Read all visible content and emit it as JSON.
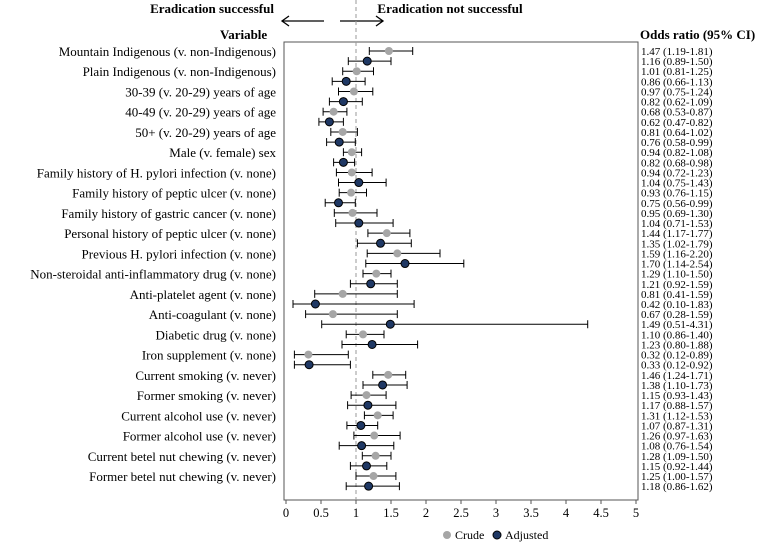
{
  "header": {
    "left_label": "Eradication successful",
    "right_label": "Eradication not successful",
    "variable_header": "Variable",
    "or_header": "Odds ratio (95% CI)"
  },
  "legend": {
    "crude": "Crude",
    "adjusted": "Adjusted"
  },
  "colors": {
    "crude": "#a6a6a6",
    "adjusted": "#1f3864",
    "reference_line": "#999999"
  },
  "chart_data": {
    "type": "forest",
    "xlim": [
      0,
      5
    ],
    "xticks": [
      "0",
      "0.5",
      "1",
      "1.5",
      "2",
      "2.5",
      "3",
      "3.5",
      "4",
      "4.5",
      "5"
    ],
    "reference": 1,
    "variables": [
      {
        "label": "Mountain Indigenous (v. non-Indigenous)",
        "crude": [
          1.47,
          1.19,
          1.81
        ],
        "crude_text": "1.47 (1.19-1.81)",
        "adjusted": [
          1.16,
          0.89,
          1.5
        ],
        "adjusted_text": "1.16 (0.89-1.50)"
      },
      {
        "label": "Plain Indigenous (v. non-Indigenous)",
        "crude": [
          1.01,
          0.81,
          1.25
        ],
        "crude_text": "1.01 (0.81-1.25)",
        "adjusted": [
          0.86,
          0.66,
          1.13
        ],
        "adjusted_text": "0.86 (0.66-1.13)"
      },
      {
        "label": "30-39 (v. 20-29) years of age",
        "crude": [
          0.97,
          0.75,
          1.24
        ],
        "crude_text": "0.97 (0.75-1.24)",
        "adjusted": [
          0.82,
          0.62,
          1.09
        ],
        "adjusted_text": "0.82 (0.62-1.09)"
      },
      {
        "label": "40-49 (v. 20-29) years of age",
        "crude": [
          0.68,
          0.53,
          0.87
        ],
        "crude_text": "0.68 (0.53-0.87)",
        "adjusted": [
          0.62,
          0.47,
          0.82
        ],
        "adjusted_text": "0.62 (0.47-0.82)"
      },
      {
        "label": "50+ (v. 20-29) years of age",
        "crude": [
          0.81,
          0.64,
          1.02
        ],
        "crude_text": "0.81 (0.64-1.02)",
        "adjusted": [
          0.76,
          0.58,
          0.99
        ],
        "adjusted_text": "0.76 (0.58-0.99)"
      },
      {
        "label": "Male (v. female) sex",
        "crude": [
          0.94,
          0.82,
          1.08
        ],
        "crude_text": "0.94 (0.82-1.08)",
        "adjusted": [
          0.82,
          0.68,
          0.98
        ],
        "adjusted_text": "0.82 (0.68-0.98)"
      },
      {
        "label": "Family history of H. pylori infection (v. none)",
        "crude": [
          0.94,
          0.72,
          1.23
        ],
        "crude_text": "0.94 (0.72-1.23)",
        "adjusted": [
          1.04,
          0.75,
          1.43
        ],
        "adjusted_text": "1.04 (0.75-1.43)"
      },
      {
        "label": "Family history of peptic ulcer (v. none)",
        "crude": [
          0.93,
          0.76,
          1.15
        ],
        "crude_text": "0.93 (0.76-1.15)",
        "adjusted": [
          0.75,
          0.56,
          0.99
        ],
        "adjusted_text": "0.75 (0.56-0.99)"
      },
      {
        "label": "Family history of gastric cancer (v. none)",
        "crude": [
          0.95,
          0.69,
          1.3
        ],
        "crude_text": "0.95 (0.69-1.30)",
        "adjusted": [
          1.04,
          0.71,
          1.53
        ],
        "adjusted_text": "1.04 (0.71-1.53)"
      },
      {
        "label": "Personal history of peptic ulcer (v. none)",
        "crude": [
          1.44,
          1.17,
          1.77
        ],
        "crude_text": "1.44 (1.17-1.77)",
        "adjusted": [
          1.35,
          1.02,
          1.79
        ],
        "adjusted_text": "1.35 (1.02-1.79)"
      },
      {
        "label": "Previous H. pylori infection (v. none)",
        "crude": [
          1.59,
          1.16,
          2.2
        ],
        "crude_text": "1.59 (1.16-2.20)",
        "adjusted": [
          1.7,
          1.14,
          2.54
        ],
        "adjusted_text": "1.70 (1.14-2.54)"
      },
      {
        "label": "Non-steroidal anti-inflammatory drug (v. none)",
        "crude": [
          1.29,
          1.1,
          1.5
        ],
        "crude_text": "1.29 (1.10-1.50)",
        "adjusted": [
          1.21,
          0.92,
          1.59
        ],
        "adjusted_text": "1.21 (0.92-1.59)"
      },
      {
        "label": "Anti-platelet agent (v. none)",
        "crude": [
          0.81,
          0.41,
          1.59
        ],
        "crude_text": "0.81 (0.41-1.59)",
        "adjusted": [
          0.42,
          0.1,
          1.83
        ],
        "adjusted_text": "0.42 (0.10-1.83)"
      },
      {
        "label": "Anti-coagulant (v. none)",
        "crude": [
          0.67,
          0.28,
          1.59
        ],
        "crude_text": "0.67 (0.28-1.59)",
        "adjusted": [
          1.49,
          0.51,
          4.31
        ],
        "adjusted_text": "1.49 (0.51-4.31)"
      },
      {
        "label": "Diabetic drug (v. none)",
        "crude": [
          1.1,
          0.86,
          1.4
        ],
        "crude_text": "1.10 (0.86-1.40)",
        "adjusted": [
          1.23,
          0.8,
          1.88
        ],
        "adjusted_text": "1.23 (0.80-1.88)"
      },
      {
        "label": "Iron supplement (v. none)",
        "crude": [
          0.32,
          0.12,
          0.89
        ],
        "crude_text": "0.32 (0.12-0.89)",
        "adjusted": [
          0.33,
          0.12,
          0.92
        ],
        "adjusted_text": "0.33 (0.12-0.92)"
      },
      {
        "label": "Current smoking (v. never)",
        "crude": [
          1.46,
          1.24,
          1.71
        ],
        "crude_text": "1.46 (1.24-1.71)",
        "adjusted": [
          1.38,
          1.1,
          1.73
        ],
        "adjusted_text": "1.38 (1.10-1.73)"
      },
      {
        "label": "Former smoking (v. never)",
        "crude": [
          1.15,
          0.93,
          1.43
        ],
        "crude_text": "1.15 (0.93-1.43)",
        "adjusted": [
          1.17,
          0.88,
          1.57
        ],
        "adjusted_text": "1.17 (0.88-1.57)"
      },
      {
        "label": "Current alcohol use (v. never)",
        "crude": [
          1.31,
          1.12,
          1.53
        ],
        "crude_text": "1.31 (1.12-1.53)",
        "adjusted": [
          1.07,
          0.87,
          1.31
        ],
        "adjusted_text": "1.07 (0.87-1.31)"
      },
      {
        "label": "Former alcohol use (v. never)",
        "crude": [
          1.26,
          0.97,
          1.63
        ],
        "crude_text": "1.26 (0.97-1.63)",
        "adjusted": [
          1.08,
          0.76,
          1.54
        ],
        "adjusted_text": "1.08 (0.76-1.54)"
      },
      {
        "label": "Current betel nut chewing (v. never)",
        "crude": [
          1.28,
          1.09,
          1.5
        ],
        "crude_text": "1.28 (1.09-1.50)",
        "adjusted": [
          1.15,
          0.92,
          1.44
        ],
        "adjusted_text": "1.15 (0.92-1.44)"
      },
      {
        "label": "Former betel nut chewing (v. never)",
        "crude": [
          1.25,
          1.0,
          1.57
        ],
        "crude_text": "1.25 (1.00-1.57)",
        "adjusted": [
          1.18,
          0.86,
          1.62
        ],
        "adjusted_text": "1.18 (0.86-1.62)"
      }
    ]
  }
}
